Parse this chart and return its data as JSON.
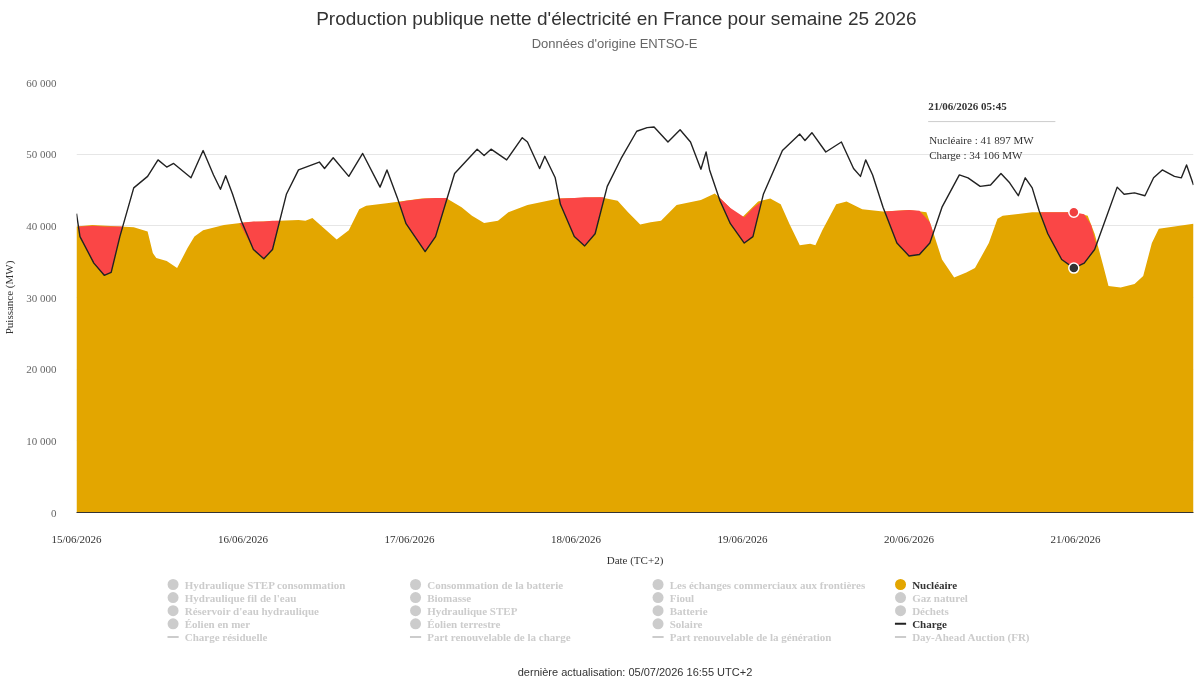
{
  "chart_data": {
    "type": "area",
    "title": "Production publique nette d'électricité en France pour semaine 25 2026",
    "subtitle": "Données d'origine ENTSO-E",
    "xlabel": "Date (TC+2)",
    "ylabel": "Puissance (MW)",
    "xlim": [
      "2026-06-15T00:00",
      "2026-06-21T17:00"
    ],
    "xticks": [
      {
        "value": "2026-06-15",
        "label": "15/06/2026"
      },
      {
        "value": "2026-06-16",
        "label": "16/06/2026"
      },
      {
        "value": "2026-06-17",
        "label": "17/06/2026"
      },
      {
        "value": "2026-06-18",
        "label": "18/06/2026"
      },
      {
        "value": "2026-06-19",
        "label": "19/06/2026"
      },
      {
        "value": "2026-06-20",
        "label": "20/06/2026"
      },
      {
        "value": "2026-06-21",
        "label": "21/06/2026"
      }
    ],
    "ylim": [
      0,
      60000
    ],
    "yticks": [
      0,
      {
        "value": 10000,
        "label": "10 000"
      },
      {
        "value": 20000,
        "label": "20 000"
      },
      {
        "value": 30000,
        "label": "30 000"
      },
      {
        "value": 40000,
        "label": "40 000"
      },
      {
        "value": 50000,
        "label": "50 000"
      },
      {
        "value": 60000,
        "label": "60 000"
      }
    ],
    "grid": "y",
    "legend": "bottom",
    "series": [
      {
        "name": "Hydraulique STEP consommation",
        "type": "area",
        "color": "#cccccc"
      },
      {
        "name": "Consommation de la batterie",
        "type": "area",
        "color": "#cccccc"
      },
      {
        "name": "Les échanges commerciaux aux frontières",
        "type": "area",
        "color": "#cccccc"
      },
      {
        "name": "Nucléaire",
        "color": "#e3a600",
        "x": [
          "2026-06-15T00:00",
          "2026-06-15T02:15",
          "2026-06-15T06:15",
          "2026-06-15T08:15",
          "2026-06-15T10:15",
          "2026-06-15T11:00",
          "2026-06-15T11:30",
          "2026-06-15T13:00",
          "2026-06-15T14:30",
          "2026-06-15T16:00",
          "2026-06-15T17:00",
          "2026-06-15T18:15",
          "2026-06-15T21:15",
          "2026-06-16T00:30",
          "2026-06-16T05:15",
          "2026-06-16T08:00",
          "2026-06-16T09:00",
          "2026-06-16T10:00",
          "2026-06-16T11:45",
          "2026-06-16T13:30",
          "2026-06-16T15:15",
          "2026-06-16T16:45",
          "2026-06-16T17:45",
          "2026-06-16T21:00",
          "2026-06-17T01:45",
          "2026-06-17T05:15",
          "2026-06-17T07:30",
          "2026-06-17T09:00",
          "2026-06-17T10:45",
          "2026-06-17T12:45",
          "2026-06-17T14:15",
          "2026-06-17T17:00",
          "2026-06-17T21:30",
          "2026-06-18T03:30",
          "2026-06-18T06:00",
          "2026-06-18T07:30",
          "2026-06-18T09:15",
          "2026-06-18T10:45",
          "2026-06-18T12:15",
          "2026-06-18T14:30",
          "2026-06-18T18:00",
          "2026-06-18T20:00",
          "2026-06-18T20:45",
          "2026-06-18T23:45",
          "2026-06-19T02:15",
          "2026-06-19T04:00",
          "2026-06-19T05:30",
          "2026-06-19T06:45",
          "2026-06-19T08:15",
          "2026-06-19T09:45",
          "2026-06-19T10:30",
          "2026-06-19T11:30",
          "2026-06-19T13:30",
          "2026-06-19T15:00",
          "2026-06-19T17:15",
          "2026-06-19T20:15",
          "2026-06-20T00:00",
          "2026-06-20T02:30",
          "2026-06-20T03:15",
          "2026-06-20T04:45",
          "2026-06-20T06:30",
          "2026-06-20T08:15",
          "2026-06-20T09:30",
          "2026-06-20T11:30",
          "2026-06-20T12:45",
          "2026-06-20T13:30",
          "2026-06-20T17:45",
          "2026-06-20T23:45",
          "2026-06-21T01:45",
          "2026-06-21T02:45",
          "2026-06-21T04:00",
          "2026-06-21T04:45",
          "2026-06-21T06:30",
          "2026-06-21T08:30",
          "2026-06-21T09:45",
          "2026-06-21T11:00",
          "2026-06-21T12:00",
          "2026-06-21T14:15",
          "2026-06-21T17:00"
        ],
        "values": [
          39900,
          40100,
          39900,
          39800,
          39200,
          36200,
          35500,
          35100,
          34100,
          36900,
          38500,
          39400,
          40100,
          40500,
          40700,
          40800,
          40700,
          41100,
          39600,
          38100,
          39400,
          42300,
          42800,
          43200,
          43800,
          43900,
          42600,
          41400,
          40400,
          40700,
          41900,
          42900,
          43800,
          44000,
          43500,
          41900,
          40200,
          40500,
          40700,
          42900,
          43600,
          44500,
          43900,
          41000,
          43400,
          43800,
          43000,
          40300,
          37300,
          37500,
          37300,
          39400,
          43000,
          43400,
          42300,
          42000,
          42200,
          41900,
          39800,
          35300,
          32800,
          33500,
          34100,
          37600,
          41000,
          41400,
          41900,
          41900,
          41400,
          38900,
          34400,
          31600,
          31400,
          31900,
          33000,
          37600,
          39600,
          39900,
          40300
        ]
      },
      {
        "type": "area",
        "color": "#fa4646",
        "x": [
          "2026-06-15T00:15",
          "2026-06-15T00:30",
          "2026-06-15T02:30",
          "2026-06-15T04:00",
          "2026-06-15T05:00",
          "2026-06-15T06:15",
          "2026-06-15T06:45",
          "2026-06-15T12:00",
          "2026-06-15T23:30",
          "2026-06-16T01:30",
          "2026-06-16T03:00",
          "2026-06-16T04:15",
          "2026-06-16T05:15",
          "2026-06-16T12:00",
          "2026-06-16T22:30",
          "2026-06-16T23:30",
          "2026-06-17T02:15",
          "2026-06-17T03:45",
          "2026-06-17T05:30",
          "2026-06-17T12:00",
          "2026-06-17T21:30",
          "2026-06-17T21:45",
          "2026-06-17T23:45",
          "2026-06-18T01:15",
          "2026-06-18T02:45",
          "2026-06-18T04:00",
          "2026-06-18T12:00",
          "2026-06-18T20:30",
          "2026-06-18T20:45",
          "2026-06-18T22:15",
          "2026-06-19T00:15",
          "2026-06-19T01:30",
          "2026-06-19T02:45",
          "2026-06-19T12:00",
          "2026-06-19T20:30",
          "2026-06-19T22:15",
          "2026-06-20T00:00",
          "2026-06-20T01:30",
          "2026-06-20T03:00",
          "2026-06-20T03:30",
          "2026-06-20T12:00",
          "2026-06-20T19:00",
          "2026-06-20T20:00",
          "2026-06-20T22:00",
          "2026-06-20T23:45",
          "2026-06-21T01:15",
          "2026-06-21T02:15",
          "2026-06-21T03:00"
        ],
        "values": [
          null,
          null,
          null,
          null,
          null,
          null,
          null,
          null,
          null,
          null,
          null,
          null,
          null,
          null,
          null,
          null,
          null,
          null,
          null,
          null,
          null,
          null,
          null,
          null,
          null,
          null,
          null,
          null,
          null,
          null,
          null,
          null,
          null,
          null,
          null,
          null,
          null,
          null,
          null,
          null,
          null,
          null,
          null,
          null,
          null,
          null,
          null,
          null
        ],
        "lower": [
          39900,
          38500,
          34800,
          33100,
          33500,
          38500,
          39900,
          null,
          40400,
          36700,
          35400,
          36700,
          40700,
          null,
          43300,
          40300,
          36400,
          38500,
          43900,
          null,
          43800,
          43000,
          38500,
          37200,
          38900,
          44000,
          null,
          44100,
          43500,
          40300,
          37600,
          38500,
          43400,
          null,
          42000,
          37600,
          35800,
          36000,
          37600,
          39000,
          null,
          41900,
          38900,
          35300,
          34100,
          34800,
          36000,
          37300
        ],
        "upper": [
          39900,
          39900,
          40000,
          39900,
          39900,
          39900,
          39900,
          null,
          40400,
          40600,
          40600,
          40700,
          40700,
          null,
          43300,
          43500,
          43800,
          43900,
          43900,
          null,
          43800,
          43800,
          43900,
          44000,
          44000,
          44000,
          null,
          44100,
          43900,
          42500,
          41200,
          42500,
          43400,
          null,
          42000,
          42100,
          42200,
          42100,
          40500,
          39000,
          null,
          41900,
          41900,
          41900,
          41900,
          41600,
          40100,
          37300
        ]
      },
      {
        "name": "Hydraulique fil de l'eau",
        "type": "area",
        "color": "#cccccc"
      },
      {
        "name": "Biomasse",
        "type": "area",
        "color": "#cccccc"
      },
      {
        "name": "Fioul",
        "type": "area",
        "color": "#cccccc"
      },
      {
        "name": "Gaz naturel",
        "type": "area",
        "color": "#cccccc"
      },
      {
        "name": "Réservoir d'eau hydraulique",
        "type": "area",
        "color": "#cccccc"
      },
      {
        "name": "Hydraulique STEP",
        "type": "area",
        "color": "#cccccc"
      },
      {
        "name": "Batterie",
        "type": "area",
        "color": "#cccccc"
      },
      {
        "name": "Déchets",
        "type": "area",
        "color": "#cccccc"
      },
      {
        "name": "Éolien en mer",
        "type": "area",
        "color": "#cccccc"
      },
      {
        "name": "Éolien terrestre",
        "type": "area",
        "color": "#cccccc"
      },
      {
        "name": "Solaire",
        "type": "area",
        "color": "#cccccc"
      },
      {
        "name": "Charge",
        "type": "line",
        "color": "#222222",
        "x": [
          "2026-06-15T00:00",
          "2026-06-15T00:30",
          "2026-06-15T02:30",
          "2026-06-15T04:00",
          "2026-06-15T05:00",
          "2026-06-15T06:15",
          "2026-06-15T08:15",
          "2026-06-15T10:15",
          "2026-06-15T11:45",
          "2026-06-15T13:00",
          "2026-06-15T14:00",
          "2026-06-15T16:30",
          "2026-06-15T18:15",
          "2026-06-15T19:45",
          "2026-06-15T20:45",
          "2026-06-15T21:30",
          "2026-06-15T22:30",
          "2026-06-15T23:45",
          "2026-06-16T01:30",
          "2026-06-16T03:00",
          "2026-06-16T04:15",
          "2026-06-16T06:15",
          "2026-06-16T08:00",
          "2026-06-16T11:00",
          "2026-06-16T11:45",
          "2026-06-16T13:00",
          "2026-06-16T15:15",
          "2026-06-16T17:15",
          "2026-06-16T19:45",
          "2026-06-16T20:45",
          "2026-06-16T22:15",
          "2026-06-16T23:30",
          "2026-06-17T02:15",
          "2026-06-17T03:45",
          "2026-06-17T06:30",
          "2026-06-17T09:45",
          "2026-06-17T10:45",
          "2026-06-17T11:45",
          "2026-06-17T14:00",
          "2026-06-17T16:15",
          "2026-06-17T17:00",
          "2026-06-17T18:45",
          "2026-06-17T19:30",
          "2026-06-17T21:00",
          "2026-06-17T21:45",
          "2026-06-17T23:45",
          "2026-06-18T01:15",
          "2026-06-18T02:45",
          "2026-06-18T04:30",
          "2026-06-18T06:30",
          "2026-06-18T08:45",
          "2026-06-18T10:15",
          "2026-06-18T11:15",
          "2026-06-18T13:15",
          "2026-06-18T15:00",
          "2026-06-18T16:30",
          "2026-06-18T18:00",
          "2026-06-18T18:45",
          "2026-06-18T19:15",
          "2026-06-18T20:45",
          "2026-06-18T22:15",
          "2026-06-19T00:15",
          "2026-06-19T01:30",
          "2026-06-19T03:00",
          "2026-06-19T05:45",
          "2026-06-19T08:15",
          "2026-06-19T09:00",
          "2026-06-19T10:00",
          "2026-06-19T12:00",
          "2026-06-19T14:15",
          "2026-06-19T16:00",
          "2026-06-19T17:00",
          "2026-06-19T17:45",
          "2026-06-19T18:45",
          "2026-06-19T20:15",
          "2026-06-19T22:15",
          "2026-06-20T00:00",
          "2026-06-20T01:30",
          "2026-06-20T03:00",
          "2026-06-20T04:45",
          "2026-06-20T07:15",
          "2026-06-20T08:30",
          "2026-06-20T10:15",
          "2026-06-20T11:45",
          "2026-06-20T13:15",
          "2026-06-20T14:30",
          "2026-06-20T15:45",
          "2026-06-20T16:45",
          "2026-06-20T17:45",
          "2026-06-20T18:45",
          "2026-06-20T20:00",
          "2026-06-20T22:00",
          "2026-06-20T23:45",
          "2026-06-21T01:15",
          "2026-06-21T02:45",
          "2026-06-21T04:15",
          "2026-06-21T06:00",
          "2026-06-21T07:00",
          "2026-06-21T08:30",
          "2026-06-21T10:00",
          "2026-06-21T11:15",
          "2026-06-21T12:30",
          "2026-06-21T14:15",
          "2026-06-21T15:15",
          "2026-06-21T16:00",
          "2026-06-21T16:30",
          "2026-06-21T17:00"
        ],
        "values": [
          41700,
          38500,
          34800,
          33100,
          33500,
          38500,
          45300,
          46900,
          49200,
          48200,
          48700,
          46700,
          50500,
          47100,
          45100,
          47000,
          44400,
          40700,
          36700,
          35400,
          36700,
          44400,
          47800,
          48900,
          48000,
          49500,
          46900,
          50100,
          45400,
          47800,
          43900,
          40300,
          36400,
          38500,
          47300,
          50700,
          49800,
          50700,
          49200,
          52300,
          51700,
          48000,
          49700,
          46700,
          43000,
          38500,
          37200,
          38900,
          45500,
          49400,
          53200,
          53700,
          53800,
          51700,
          53400,
          51700,
          47900,
          50300,
          47800,
          43500,
          40300,
          37600,
          38500,
          44400,
          50500,
          52800,
          51900,
          53000,
          50300,
          51700,
          48000,
          46900,
          49200,
          47100,
          42600,
          37600,
          35800,
          36000,
          37600,
          42600,
          47100,
          46700,
          45500,
          45700,
          47300,
          46000,
          44200,
          46700,
          45300,
          42100,
          38900,
          35300,
          34100,
          34800,
          36700,
          40700,
          45400,
          44400,
          44600,
          44200,
          46700,
          47800,
          46900,
          46700,
          48500,
          47100,
          45700
        ]
      },
      {
        "name": "Charge résiduelle",
        "type": "line",
        "color": "#cccccc"
      },
      {
        "name": "Part renouvelable de la charge",
        "type": "line",
        "color": "#cccccc"
      },
      {
        "name": "Part renouvelable de la génération",
        "type": "line",
        "color": "#cccccc"
      },
      {
        "name": "Day-Ahead Auction (FR)",
        "type": "line",
        "color": "#cccccc"
      },
      {
        "type": "scatter",
        "marker": "circle",
        "x": [
          "2026-06-20T23:45",
          "2026-06-20T23:45"
        ],
        "values": [
          41897,
          34106
        ],
        "colors": [
          "#f04040",
          "#333333"
        ]
      }
    ],
    "annotations": [
      "21/06/2026 05:45",
      "Nucléaire : 41 897 MW",
      "Charge : 34 106 MW",
      "dernière actualisation: 05/07/2026 16:55 UTC+2"
    ]
  }
}
